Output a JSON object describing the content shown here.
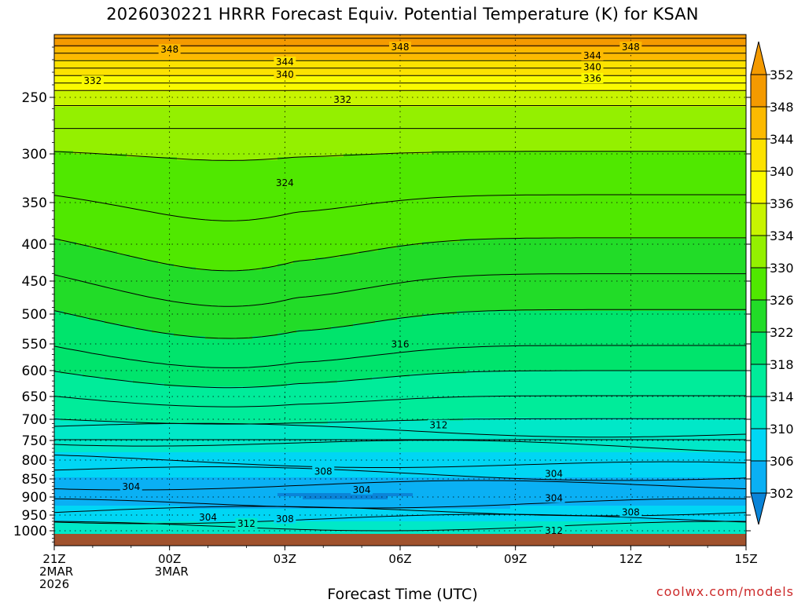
{
  "title": "2026030221 HRRR Forecast Equiv. Potential Temperature (K) for KSAN",
  "xlabel": "Forecast Time (UTC)",
  "credit": "coolwx.com/models",
  "colors": {
    "ground": "#a0522d",
    "contour": "#000000",
    "bins": [
      "#0a84d8",
      "#0ab0f4",
      "#00d6f4",
      "#00e8c8",
      "#00ec9a",
      "#00e46c",
      "#22dc28",
      "#50e800",
      "#94f000",
      "#c8f400",
      "#fafa00",
      "#fce200",
      "#fcba00",
      "#f49a00"
    ]
  },
  "chart_data": {
    "type": "heatmap",
    "title": "2026030221 HRRR Forecast Equiv. Potential Temperature (K) for KSAN",
    "xlabel": "Forecast Time (UTC)",
    "ylabel": "",
    "y_axis": "pressure (hPa), inverted",
    "ylim": [
      1040,
      200
    ],
    "xlim": [
      0,
      18
    ],
    "x_ticks": [
      {
        "hour": 0,
        "lines": [
          "21Z",
          "2MAR",
          "2026"
        ]
      },
      {
        "hour": 3,
        "lines": [
          "00Z",
          "3MAR"
        ]
      },
      {
        "hour": 6,
        "lines": [
          "03Z"
        ]
      },
      {
        "hour": 9,
        "lines": [
          "06Z"
        ]
      },
      {
        "hour": 12,
        "lines": [
          "09Z"
        ]
      },
      {
        "hour": 15,
        "lines": [
          "12Z"
        ]
      },
      {
        "hour": 18,
        "lines": [
          "15Z"
        ]
      }
    ],
    "y_ticks": [
      250,
      300,
      350,
      400,
      450,
      500,
      550,
      600,
      650,
      700,
      750,
      800,
      850,
      900,
      950,
      1000
    ],
    "grid": true,
    "colorbar": {
      "levels": [
        302,
        306,
        310,
        314,
        318,
        322,
        326,
        330,
        334,
        336,
        340,
        344,
        348,
        352
      ],
      "extend": "both"
    },
    "contour_labels": [
      {
        "text": "348",
        "x": 3.0,
        "p": 212
      },
      {
        "text": "348",
        "x": 9.0,
        "p": 210
      },
      {
        "text": "348",
        "x": 15.0,
        "p": 210
      },
      {
        "text": "344",
        "x": 6.0,
        "p": 222
      },
      {
        "text": "344",
        "x": 14.0,
        "p": 217
      },
      {
        "text": "340",
        "x": 6.0,
        "p": 232
      },
      {
        "text": "340",
        "x": 14.0,
        "p": 226
      },
      {
        "text": "336",
        "x": 14.0,
        "p": 235
      },
      {
        "text": "332",
        "x": 1.0,
        "p": 237
      },
      {
        "text": "332",
        "x": 7.5,
        "p": 252
      },
      {
        "text": "324",
        "x": 6.0,
        "p": 330
      },
      {
        "text": "316",
        "x": 9.0,
        "p": 551
      },
      {
        "text": "312",
        "x": 10.0,
        "p": 714
      },
      {
        "text": "308",
        "x": 7.0,
        "p": 830
      },
      {
        "text": "304",
        "x": 2.0,
        "p": 872
      },
      {
        "text": "304",
        "x": 8.0,
        "p": 880
      },
      {
        "text": "304",
        "x": 13.0,
        "p": 836
      },
      {
        "text": "304",
        "x": 13.0,
        "p": 903
      },
      {
        "text": "304",
        "x": 4.0,
        "p": 957
      },
      {
        "text": "308",
        "x": 6.0,
        "p": 962
      },
      {
        "text": "312",
        "x": 5.0,
        "p": 977
      },
      {
        "text": "308",
        "x": 15.0,
        "p": 942
      },
      {
        "text": "312",
        "x": 13.0,
        "p": 1000
      }
    ]
  }
}
